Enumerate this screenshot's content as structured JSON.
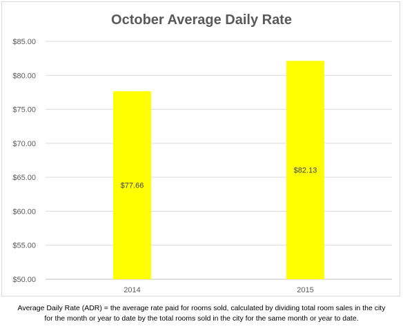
{
  "chart_data": {
    "type": "bar",
    "title": "October Average Daily Rate",
    "categories": [
      "2014",
      "2015"
    ],
    "values": [
      77.66,
      82.13
    ],
    "value_labels": [
      "$77.66",
      "$82.13"
    ],
    "ylim": [
      50,
      85
    ],
    "yticks": [
      50,
      55,
      60,
      65,
      70,
      75,
      80,
      85
    ],
    "ytick_labels": [
      "$50.00",
      "$55.00",
      "$60.00",
      "$65.00",
      "$70.00",
      "$75.00",
      "$80.00",
      "$85.00"
    ],
    "xlabel": "",
    "ylabel": "",
    "grid": true,
    "legend": "none",
    "bar_color": "#ffff00"
  },
  "footnote": {
    "line1": "Average Daily Rate (ADR) = the average rate paid for rooms sold, calculated by dividing total room sales in the city",
    "line2": "for the month or year to date by the total rooms sold in the city for the same month or year to date."
  }
}
